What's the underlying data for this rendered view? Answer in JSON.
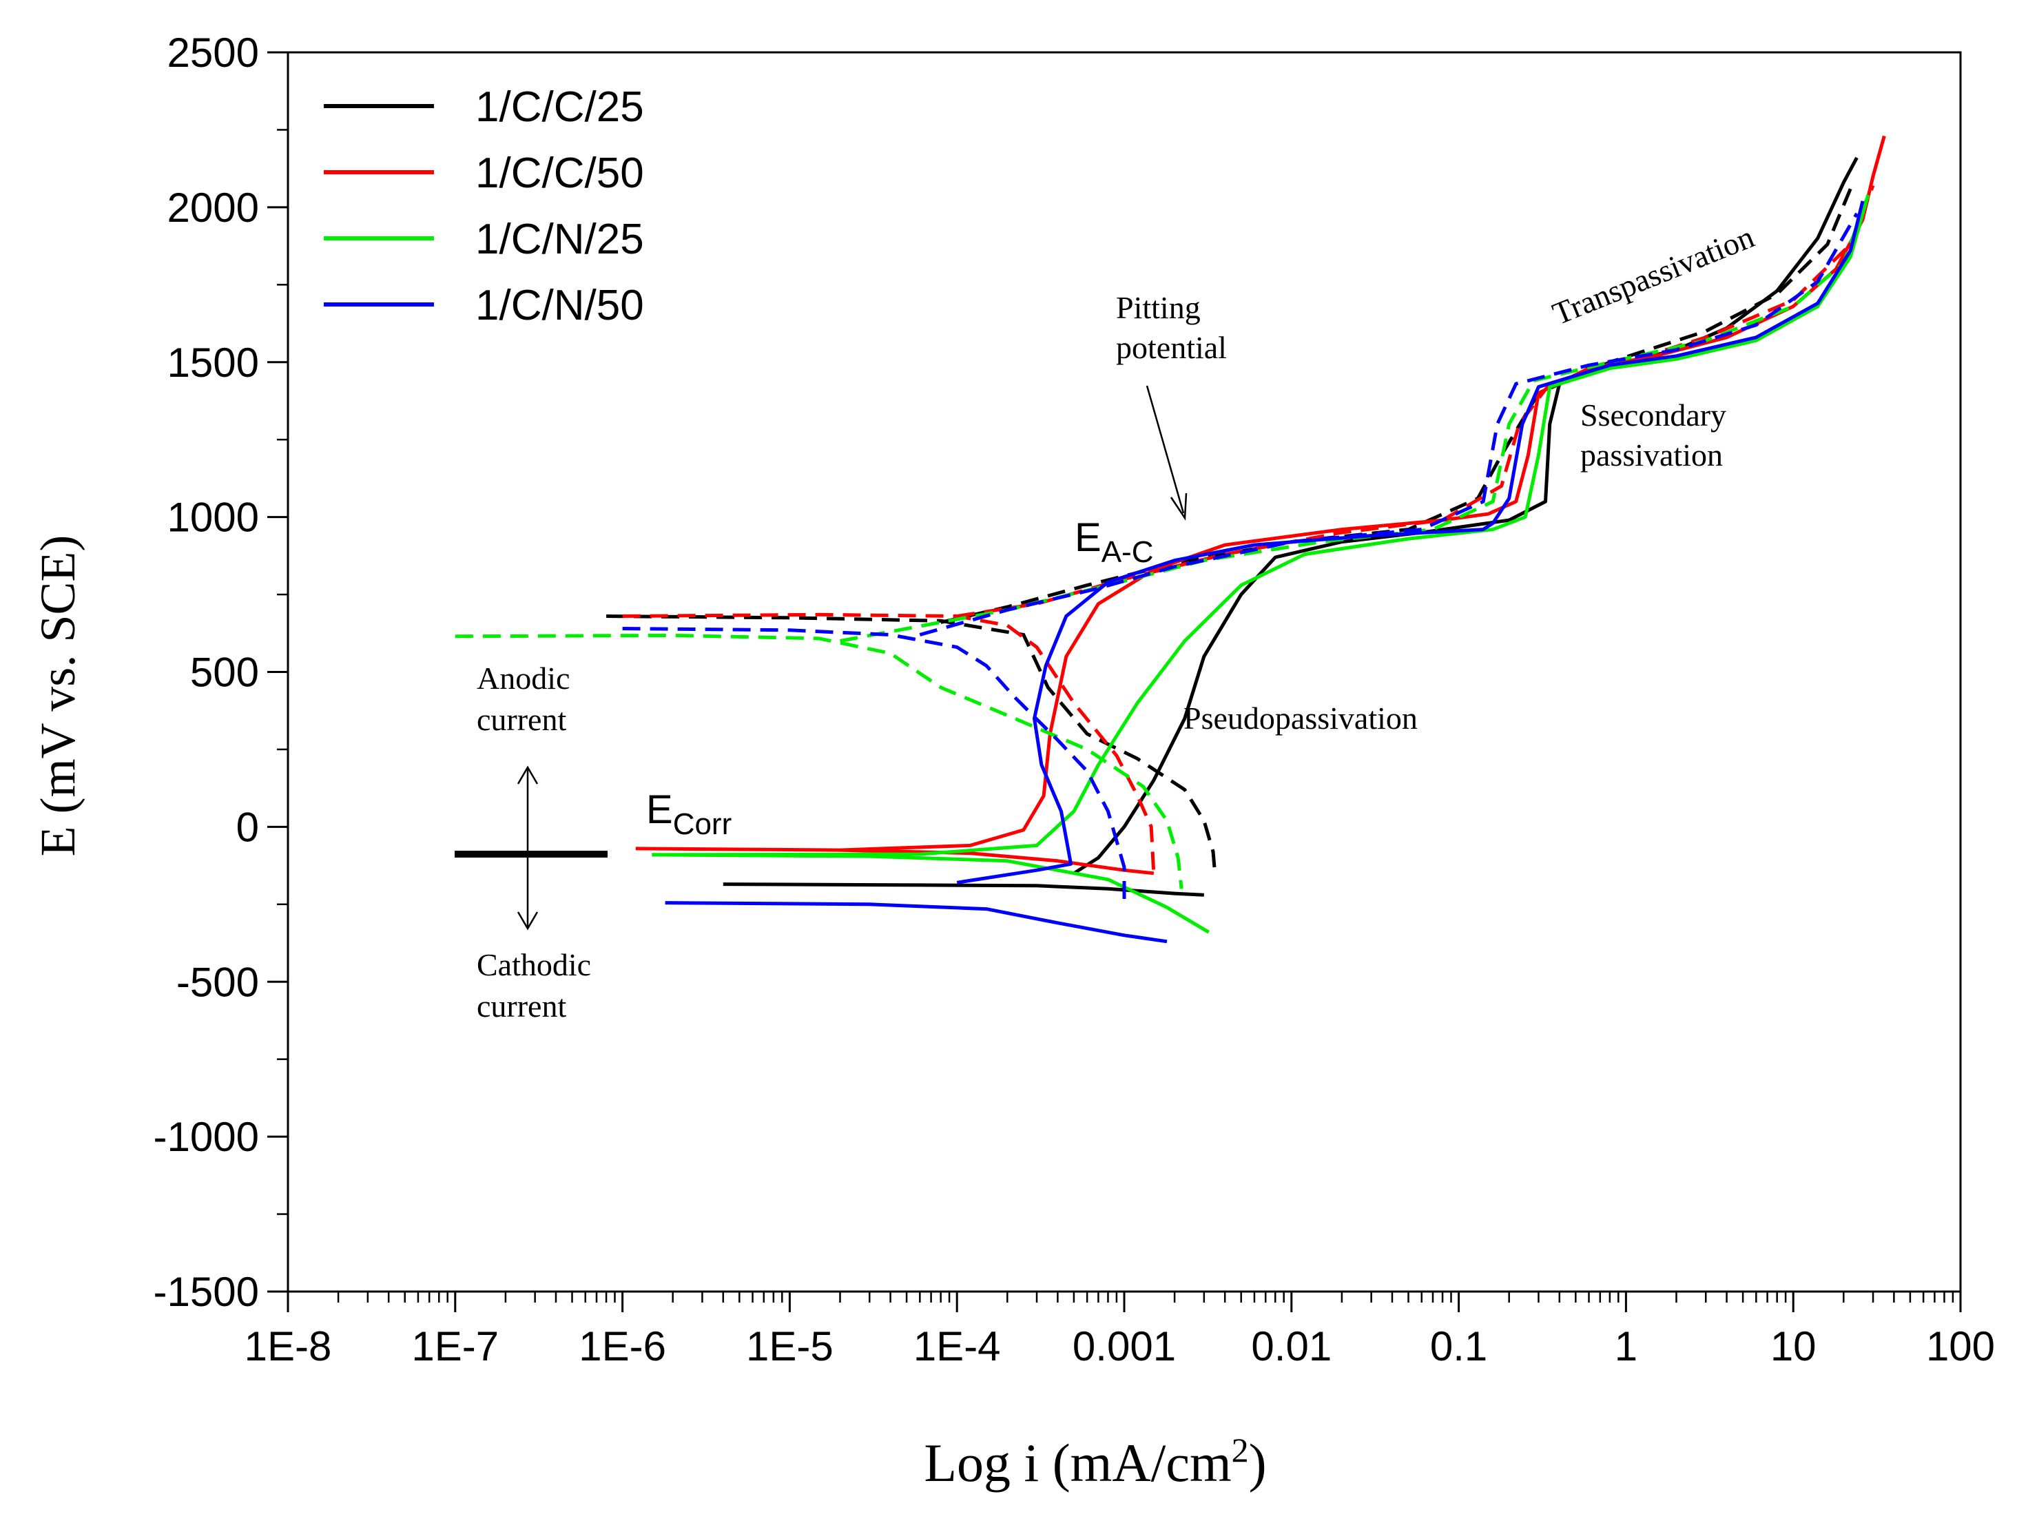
{
  "chart_data": {
    "type": "line",
    "title": "",
    "xlabel": "Log i (mA/cm",
    "xlabel_sup": "2",
    "xlabel_end": ")",
    "ylabel": "E (mV vs. SCE)",
    "x_scale": "log",
    "xlim": [
      1e-08,
      100
    ],
    "ylim": [
      -1500,
      2500
    ],
    "x_ticks": [
      {
        "value": 1e-08,
        "label": "1E-8"
      },
      {
        "value": 1e-07,
        "label": "1E-7"
      },
      {
        "value": 1e-06,
        "label": "1E-6"
      },
      {
        "value": 1e-05,
        "label": "1E-5"
      },
      {
        "value": 0.0001,
        "label": "1E-4"
      },
      {
        "value": 0.001,
        "label": "0.001"
      },
      {
        "value": 0.01,
        "label": "0.01"
      },
      {
        "value": 0.1,
        "label": "0.1"
      },
      {
        "value": 1,
        "label": "1"
      },
      {
        "value": 10,
        "label": "10"
      },
      {
        "value": 100,
        "label": "100"
      }
    ],
    "y_ticks": [
      {
        "value": 2500,
        "label": "2500"
      },
      {
        "value": 2000,
        "label": "2000"
      },
      {
        "value": 1500,
        "label": "1500"
      },
      {
        "value": 1000,
        "label": "1000"
      },
      {
        "value": 500,
        "label": "500"
      },
      {
        "value": 0,
        "label": "0"
      },
      {
        "value": -500,
        "label": "-500"
      },
      {
        "value": -1000,
        "label": "-1000"
      },
      {
        "value": -1500,
        "label": "-1500"
      }
    ],
    "grid": false,
    "legend_position": "top-left",
    "series": [
      {
        "name": "1/C/C/25",
        "color": "#000000",
        "solid": [
          [
            4e-06,
            -185
          ],
          [
            6e-05,
            -188
          ],
          [
            0.0003,
            -190
          ],
          [
            0.0008,
            -200
          ],
          [
            0.002,
            -215
          ],
          [
            0.003,
            -220
          ]
        ],
        "solid_anodic": [
          [
            0.0005,
            -150
          ],
          [
            0.0007,
            -100
          ],
          [
            0.001,
            0
          ],
          [
            0.0015,
            150
          ],
          [
            0.0023,
            350
          ],
          [
            0.003,
            550
          ],
          [
            0.005,
            750
          ],
          [
            0.008,
            870
          ],
          [
            0.02,
            920
          ],
          [
            0.06,
            950
          ],
          [
            0.2,
            990
          ],
          [
            0.33,
            1050
          ],
          [
            0.35,
            1300
          ],
          [
            0.4,
            1430
          ],
          [
            0.6,
            1480
          ],
          [
            1,
            1500
          ],
          [
            2,
            1540
          ],
          [
            4,
            1610
          ],
          [
            8,
            1730
          ],
          [
            14,
            1900
          ],
          [
            20,
            2080
          ],
          [
            24,
            2160
          ]
        ],
        "dashed_cathodic": [
          [
            8e-07,
            680
          ],
          [
            1e-05,
            675
          ],
          [
            8e-05,
            665
          ],
          [
            0.00025,
            620
          ],
          [
            0.00035,
            450
          ],
          [
            0.0006,
            300
          ],
          [
            0.0012,
            220
          ],
          [
            0.0023,
            120
          ],
          [
            0.003,
            20
          ],
          [
            0.0034,
            -80
          ],
          [
            0.0035,
            -160
          ]
        ],
        "dashed_anodic": [
          [
            8e-05,
            660
          ],
          [
            0.0002,
            710
          ],
          [
            0.0006,
            780
          ],
          [
            0.002,
            850
          ],
          [
            0.01,
            920
          ],
          [
            0.05,
            960
          ],
          [
            0.13,
            1060
          ],
          [
            0.18,
            1200
          ],
          [
            0.3,
            1400
          ],
          [
            0.8,
            1500
          ],
          [
            3,
            1600
          ],
          [
            8,
            1720
          ],
          [
            16,
            1880
          ],
          [
            22,
            2060
          ]
        ]
      },
      {
        "name": "1/C/C/50",
        "color": "#ff0000",
        "solid": [
          [
            1.2e-06,
            -70
          ],
          [
            2e-05,
            -75
          ],
          [
            0.00012,
            -85
          ],
          [
            0.0004,
            -110
          ],
          [
            0.001,
            -140
          ],
          [
            0.0015,
            -150
          ]
        ],
        "solid_anodic": [
          [
            2e-05,
            -75
          ],
          [
            0.00012,
            -60
          ],
          [
            0.00025,
            -10
          ],
          [
            0.00033,
            100
          ],
          [
            0.00036,
            300
          ],
          [
            0.00045,
            550
          ],
          [
            0.0007,
            720
          ],
          [
            0.0015,
            830
          ],
          [
            0.004,
            910
          ],
          [
            0.02,
            960
          ],
          [
            0.08,
            990
          ],
          [
            0.15,
            1010
          ],
          [
            0.22,
            1050
          ],
          [
            0.26,
            1200
          ],
          [
            0.3,
            1400
          ],
          [
            0.6,
            1480
          ],
          [
            1.5,
            1520
          ],
          [
            4,
            1580
          ],
          [
            10,
            1680
          ],
          [
            18,
            1800
          ],
          [
            26,
            1960
          ],
          [
            30,
            2100
          ],
          [
            35,
            2230
          ]
        ],
        "dashed_cathodic": [
          [
            1e-06,
            680
          ],
          [
            1.5e-05,
            685
          ],
          [
            0.0001,
            680
          ],
          [
            0.0002,
            650
          ],
          [
            0.0003,
            580
          ],
          [
            0.0005,
            400
          ],
          [
            0.0009,
            230
          ],
          [
            0.0012,
            100
          ],
          [
            0.00145,
            0
          ],
          [
            0.0015,
            -150
          ]
        ],
        "dashed_anodic": [
          [
            0.0001,
            680
          ],
          [
            0.0003,
            720
          ],
          [
            0.001,
            800
          ],
          [
            0.004,
            880
          ],
          [
            0.02,
            950
          ],
          [
            0.08,
            990
          ],
          [
            0.18,
            1100
          ],
          [
            0.23,
            1300
          ],
          [
            0.35,
            1430
          ],
          [
            1,
            1500
          ],
          [
            3,
            1580
          ],
          [
            10,
            1700
          ],
          [
            22,
            1880
          ],
          [
            30,
            2070
          ]
        ]
      },
      {
        "name": "1/C/N/25",
        "color": "#00ee00",
        "solid": [
          [
            1.5e-06,
            -90
          ],
          [
            3e-05,
            -95
          ],
          [
            0.0002,
            -110
          ],
          [
            0.0008,
            -170
          ],
          [
            0.0018,
            -260
          ],
          [
            0.0032,
            -340
          ]
        ],
        "solid_anodic": [
          [
            1.5e-06,
            -90
          ],
          [
            6e-05,
            -88
          ],
          [
            0.0003,
            -60
          ],
          [
            0.0005,
            50
          ],
          [
            0.0007,
            200
          ],
          [
            0.0012,
            400
          ],
          [
            0.0023,
            600
          ],
          [
            0.005,
            780
          ],
          [
            0.012,
            880
          ],
          [
            0.05,
            930
          ],
          [
            0.16,
            960
          ],
          [
            0.25,
            1000
          ],
          [
            0.3,
            1200
          ],
          [
            0.35,
            1420
          ],
          [
            0.8,
            1480
          ],
          [
            2,
            1510
          ],
          [
            6,
            1570
          ],
          [
            14,
            1680
          ],
          [
            22,
            1840
          ],
          [
            28,
            2040
          ]
        ],
        "dashed_cathodic": [
          [
            1e-07,
            615
          ],
          [
            2e-06,
            618
          ],
          [
            1.5e-05,
            608
          ],
          [
            4e-05,
            560
          ],
          [
            8e-05,
            450
          ],
          [
            0.0002,
            360
          ],
          [
            0.0006,
            250
          ],
          [
            0.0013,
            130
          ],
          [
            0.0018,
            20
          ],
          [
            0.0021,
            -100
          ],
          [
            0.0022,
            -200
          ]
        ],
        "dashed_anodic": [
          [
            2e-05,
            600
          ],
          [
            0.0002,
            700
          ],
          [
            0.0008,
            780
          ],
          [
            0.003,
            860
          ],
          [
            0.015,
            920
          ],
          [
            0.07,
            960
          ],
          [
            0.16,
            1050
          ],
          [
            0.2,
            1300
          ],
          [
            0.28,
            1440
          ],
          [
            0.8,
            1500
          ],
          [
            3,
            1570
          ],
          [
            10,
            1680
          ],
          [
            20,
            1820
          ],
          [
            28,
            2040
          ]
        ]
      },
      {
        "name": "1/C/N/50",
        "color": "#0000ff",
        "solid": [
          [
            1.8e-06,
            -245
          ],
          [
            3e-05,
            -250
          ],
          [
            0.00015,
            -265
          ],
          [
            0.0004,
            -310
          ],
          [
            0.001,
            -350
          ],
          [
            0.0018,
            -370
          ]
        ],
        "solid_anodic": [
          [
            0.0001,
            -180
          ],
          [
            0.0003,
            -140
          ],
          [
            0.00048,
            -120
          ],
          [
            0.00042,
            50
          ],
          [
            0.00032,
            200
          ],
          [
            0.00029,
            350
          ],
          [
            0.00034,
            520
          ],
          [
            0.00045,
            680
          ],
          [
            0.0008,
            790
          ],
          [
            0.002,
            860
          ],
          [
            0.006,
            910
          ],
          [
            0.03,
            940
          ],
          [
            0.14,
            960
          ],
          [
            0.16,
            980
          ],
          [
            0.2,
            1060
          ],
          [
            0.24,
            1300
          ],
          [
            0.3,
            1420
          ],
          [
            0.8,
            1490
          ],
          [
            2,
            1520
          ],
          [
            6,
            1580
          ],
          [
            14,
            1690
          ],
          [
            22,
            1860
          ],
          [
            26,
            2020
          ]
        ],
        "dashed_cathodic": [
          [
            1e-06,
            640
          ],
          [
            1e-05,
            635
          ],
          [
            4e-05,
            620
          ],
          [
            0.0001,
            580
          ],
          [
            0.00015,
            520
          ],
          [
            0.00022,
            420
          ],
          [
            0.0004,
            280
          ],
          [
            0.0006,
            180
          ],
          [
            0.0008,
            50
          ],
          [
            0.001,
            -130
          ],
          [
            0.001,
            -250
          ]
        ],
        "dashed_anodic": [
          [
            6e-05,
            620
          ],
          [
            0.0002,
            700
          ],
          [
            0.0007,
            770
          ],
          [
            0.002,
            840
          ],
          [
            0.01,
            920
          ],
          [
            0.06,
            960
          ],
          [
            0.14,
            1050
          ],
          [
            0.17,
            1300
          ],
          [
            0.22,
            1430
          ],
          [
            0.6,
            1490
          ],
          [
            2,
            1540
          ],
          [
            6,
            1620
          ],
          [
            14,
            1760
          ],
          [
            24,
            1980
          ]
        ]
      }
    ],
    "annotations": {
      "pitting_line1": "Pitting",
      "pitting_line2": "potential",
      "e_ac_main": "E",
      "e_ac_sub": "A-C",
      "e_corr_main": "E",
      "e_corr_sub": "Corr",
      "anodic_line1": "Anodic",
      "anodic_line2": "current",
      "cathodic_line1": "Cathodic",
      "cathodic_line2": "current",
      "pseudo": "Pseudopassivation",
      "secondary_line1": "Ssecondary",
      "secondary_line2": "passivation",
      "transpassivation": "Transpassivation"
    }
  }
}
